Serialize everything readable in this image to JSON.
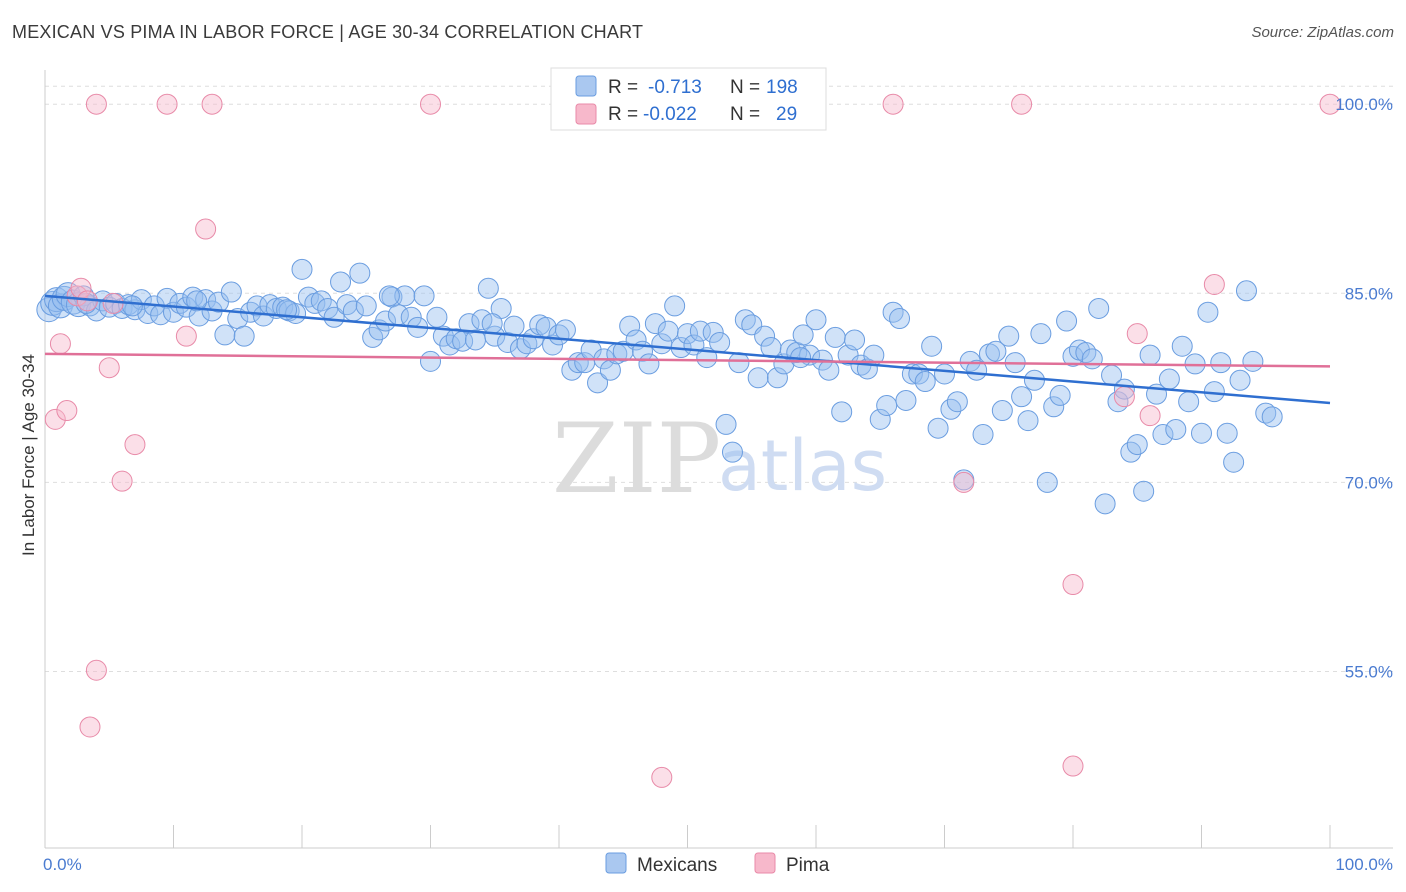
{
  "chart_data": {
    "type": "scatter",
    "title": "MEXICAN VS PIMA IN LABOR FORCE | AGE 30-34 CORRELATION CHART",
    "source": "Source: ZipAtlas.com",
    "xlabel": "",
    "ylabel": "In Labor Force | Age 30-34",
    "xlim": [
      0,
      100
    ],
    "ylim": [
      41,
      102
    ],
    "x_tick_labels": [
      "0.0%",
      "100.0%"
    ],
    "y_ticks": [
      55,
      70,
      85,
      100
    ],
    "y_tick_labels": [
      "55.0%",
      "70.0%",
      "85.0%",
      "100.0%"
    ],
    "legend": {
      "r_label": "R =",
      "n_label": "N =",
      "entries": [
        {
          "name": "Mexicans",
          "r": "-0.713",
          "n": "198",
          "fill": "#aac8f0",
          "stroke": "#6a9de0"
        },
        {
          "name": "Pima",
          "r": "-0.022",
          "n": "29",
          "fill": "#f7b8cb",
          "stroke": "#e88aa8"
        }
      ]
    },
    "watermark": {
      "zip": "ZIP",
      "atlas": "atlas"
    },
    "series": [
      {
        "name": "Mexicans",
        "color": "#4a86d8",
        "fill": "rgba(150,190,240,0.45)",
        "stroke": "#6a9de0",
        "trend": {
          "x": [
            0,
            100
          ],
          "y": [
            84.8,
            76.3
          ],
          "color": "#2f6fd0"
        },
        "points": [
          [
            0.3,
            83.7
          ],
          [
            0.6,
            84.2
          ],
          [
            0.9,
            84.5
          ],
          [
            1.2,
            84.0
          ],
          [
            1.5,
            84.6
          ],
          [
            1.8,
            84.9
          ],
          [
            2.2,
            84.3
          ],
          [
            2.6,
            84.1
          ],
          [
            3.0,
            84.8
          ],
          [
            3.5,
            84.0
          ],
          [
            4.0,
            83.6
          ],
          [
            4.5,
            84.4
          ],
          [
            5.0,
            83.9
          ],
          [
            5.5,
            84.2
          ],
          [
            6.0,
            83.8
          ],
          [
            6.5,
            84.1
          ],
          [
            7.0,
            83.7
          ],
          [
            7.5,
            84.5
          ],
          [
            8.0,
            83.4
          ],
          [
            8.5,
            84.0
          ],
          [
            9.0,
            83.3
          ],
          [
            9.5,
            84.6
          ],
          [
            10.0,
            83.5
          ],
          [
            10.5,
            84.2
          ],
          [
            11.0,
            83.9
          ],
          [
            11.5,
            84.7
          ],
          [
            12.0,
            83.2
          ],
          [
            12.5,
            84.5
          ],
          [
            13.0,
            83.6
          ],
          [
            13.5,
            84.3
          ],
          [
            14.0,
            81.7
          ],
          [
            14.5,
            85.1
          ],
          [
            15.0,
            83.0
          ],
          [
            15.5,
            81.6
          ],
          [
            16.0,
            83.5
          ],
          [
            16.5,
            84.0
          ],
          [
            17.0,
            83.2
          ],
          [
            17.5,
            84.1
          ],
          [
            18.0,
            83.8
          ],
          [
            18.5,
            83.9
          ],
          [
            19.0,
            83.6
          ],
          [
            19.5,
            83.4
          ],
          [
            20.0,
            86.9
          ],
          [
            20.5,
            84.7
          ],
          [
            21.0,
            84.2
          ],
          [
            21.5,
            84.4
          ],
          [
            22.0,
            83.8
          ],
          [
            22.5,
            83.1
          ],
          [
            23.0,
            85.9
          ],
          [
            23.5,
            84.1
          ],
          [
            24.0,
            83.6
          ],
          [
            24.5,
            86.6
          ],
          [
            25.0,
            84.0
          ],
          [
            25.5,
            81.5
          ],
          [
            26.0,
            82.1
          ],
          [
            26.5,
            82.8
          ],
          [
            27.0,
            84.7
          ],
          [
            27.5,
            83.3
          ],
          [
            28.0,
            84.8
          ],
          [
            28.5,
            83.1
          ],
          [
            29.0,
            82.3
          ],
          [
            29.5,
            84.8
          ],
          [
            30.0,
            79.6
          ],
          [
            30.5,
            83.1
          ],
          [
            31.0,
            81.6
          ],
          [
            31.5,
            80.9
          ],
          [
            32.0,
            81.4
          ],
          [
            32.5,
            81.2
          ],
          [
            33.0,
            82.6
          ],
          [
            33.5,
            81.3
          ],
          [
            34.0,
            82.9
          ],
          [
            34.5,
            85.4
          ],
          [
            35.0,
            81.6
          ],
          [
            35.5,
            83.8
          ],
          [
            36.0,
            81.1
          ],
          [
            36.5,
            82.4
          ],
          [
            37.0,
            80.6
          ],
          [
            37.5,
            81.0
          ],
          [
            38.0,
            81.4
          ],
          [
            38.5,
            82.5
          ],
          [
            39.0,
            82.3
          ],
          [
            39.5,
            80.9
          ],
          [
            40.0,
            81.7
          ],
          [
            40.5,
            82.1
          ],
          [
            41.0,
            78.9
          ],
          [
            41.5,
            79.5
          ],
          [
            42.0,
            79.5
          ],
          [
            42.5,
            80.5
          ],
          [
            43.0,
            77.9
          ],
          [
            43.5,
            79.8
          ],
          [
            44.0,
            78.9
          ],
          [
            44.5,
            80.2
          ],
          [
            45.0,
            80.4
          ],
          [
            45.5,
            82.4
          ],
          [
            46.0,
            81.3
          ],
          [
            46.5,
            80.4
          ],
          [
            47.0,
            79.4
          ],
          [
            47.5,
            82.6
          ],
          [
            48.0,
            81.0
          ],
          [
            48.5,
            82.0
          ],
          [
            49.0,
            84.0
          ],
          [
            49.5,
            80.7
          ],
          [
            50.0,
            81.8
          ],
          [
            50.5,
            80.9
          ],
          [
            51.0,
            82.0
          ],
          [
            51.5,
            79.9
          ],
          [
            52.0,
            81.9
          ],
          [
            52.5,
            81.1
          ],
          [
            53.0,
            74.6
          ],
          [
            53.5,
            72.4
          ],
          [
            54.0,
            79.5
          ],
          [
            54.5,
            82.9
          ],
          [
            55.0,
            82.5
          ],
          [
            55.5,
            78.3
          ],
          [
            56.0,
            81.6
          ],
          [
            56.5,
            80.7
          ],
          [
            57.0,
            78.3
          ],
          [
            57.5,
            79.4
          ],
          [
            58.0,
            80.5
          ],
          [
            58.5,
            80.3
          ],
          [
            59.0,
            81.7
          ],
          [
            59.5,
            80.1
          ],
          [
            60.0,
            82.9
          ],
          [
            60.5,
            79.7
          ],
          [
            61.0,
            78.9
          ],
          [
            61.5,
            81.5
          ],
          [
            62.0,
            75.6
          ],
          [
            62.5,
            80.1
          ],
          [
            63.0,
            81.3
          ],
          [
            63.5,
            79.3
          ],
          [
            64.0,
            79.0
          ],
          [
            64.5,
            80.1
          ],
          [
            65.0,
            75.0
          ],
          [
            65.5,
            76.1
          ],
          [
            66.0,
            83.5
          ],
          [
            66.5,
            83.0
          ],
          [
            67.0,
            76.5
          ],
          [
            67.5,
            78.6
          ],
          [
            68.0,
            78.6
          ],
          [
            68.5,
            78.0
          ],
          [
            69.0,
            80.8
          ],
          [
            69.5,
            74.3
          ],
          [
            70.0,
            78.6
          ],
          [
            70.5,
            75.8
          ],
          [
            71.0,
            76.4
          ],
          [
            71.5,
            70.2
          ],
          [
            72.0,
            79.6
          ],
          [
            72.5,
            78.9
          ],
          [
            73.0,
            73.8
          ],
          [
            73.5,
            80.2
          ],
          [
            74.0,
            80.4
          ],
          [
            74.5,
            75.7
          ],
          [
            75.0,
            81.6
          ],
          [
            75.5,
            79.5
          ],
          [
            76.0,
            76.8
          ],
          [
            76.5,
            74.9
          ],
          [
            77.0,
            78.1
          ],
          [
            77.5,
            81.8
          ],
          [
            78.0,
            70.0
          ],
          [
            78.5,
            76.0
          ],
          [
            79.0,
            76.9
          ],
          [
            79.5,
            82.8
          ],
          [
            80.0,
            80.0
          ],
          [
            80.5,
            80.5
          ],
          [
            81.0,
            80.3
          ],
          [
            81.5,
            79.8
          ],
          [
            82.0,
            83.8
          ],
          [
            82.5,
            68.3
          ],
          [
            83.0,
            78.5
          ],
          [
            83.5,
            76.4
          ],
          [
            84.0,
            77.4
          ],
          [
            84.5,
            72.4
          ],
          [
            85.0,
            73.0
          ],
          [
            85.5,
            69.3
          ],
          [
            86.0,
            80.1
          ],
          [
            86.5,
            77.0
          ],
          [
            87.0,
            73.8
          ],
          [
            87.5,
            78.2
          ],
          [
            88.0,
            74.2
          ],
          [
            88.5,
            80.8
          ],
          [
            89.0,
            76.4
          ],
          [
            89.5,
            79.4
          ],
          [
            90.0,
            73.9
          ],
          [
            90.5,
            83.5
          ],
          [
            91.0,
            77.2
          ],
          [
            91.5,
            79.5
          ],
          [
            92.0,
            73.9
          ],
          [
            92.5,
            71.6
          ],
          [
            93.0,
            78.1
          ],
          [
            93.5,
            85.2
          ],
          [
            94.0,
            79.6
          ],
          [
            95.0,
            75.5
          ],
          [
            95.5,
            75.2
          ],
          [
            3.2,
            84.2
          ],
          [
            6.8,
            84.0
          ],
          [
            11.8,
            84.4
          ],
          [
            18.8,
            83.7
          ],
          [
            26.8,
            84.8
          ],
          [
            34.8,
            82.6
          ],
          [
            58.8,
            79.9
          ]
        ]
      },
      {
        "name": "Pima",
        "color": "#e8799d",
        "fill": "rgba(247,184,203,0.45)",
        "stroke": "#e88aa8",
        "trend": {
          "x": [
            0,
            100
          ],
          "y": [
            80.2,
            79.2
          ],
          "color": "#e07098"
        },
        "points": [
          [
            0.8,
            75.0
          ],
          [
            1.2,
            81.0
          ],
          [
            1.7,
            75.7
          ],
          [
            2.5,
            84.8
          ],
          [
            2.8,
            85.4
          ],
          [
            3.3,
            84.4
          ],
          [
            4.0,
            55.1
          ],
          [
            3.5,
            50.6
          ],
          [
            4.0,
            100
          ],
          [
            5.0,
            79.1
          ],
          [
            5.3,
            84.2
          ],
          [
            6.0,
            70.1
          ],
          [
            7.0,
            73.0
          ],
          [
            9.5,
            100
          ],
          [
            11.0,
            81.6
          ],
          [
            12.5,
            90.1
          ],
          [
            13.0,
            100
          ],
          [
            30.0,
            100
          ],
          [
            48.0,
            46.6
          ],
          [
            66.0,
            100
          ],
          [
            71.5,
            70.0
          ],
          [
            76.0,
            100
          ],
          [
            80.0,
            61.9
          ],
          [
            80.0,
            47.5
          ],
          [
            84.0,
            76.8
          ],
          [
            85.0,
            81.8
          ],
          [
            86.0,
            75.3
          ],
          [
            91.0,
            85.7
          ],
          [
            100,
            100
          ]
        ]
      }
    ]
  }
}
